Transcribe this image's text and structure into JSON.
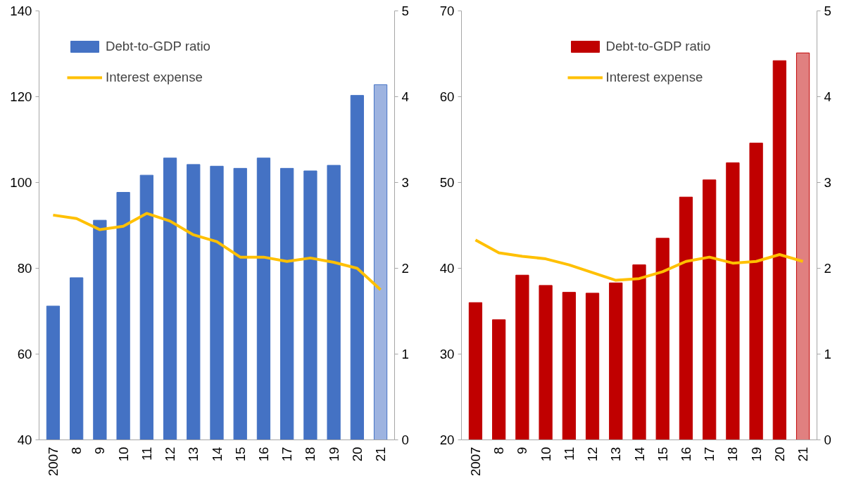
{
  "chart_data": [
    {
      "type": "bar",
      "categories": [
        "2007",
        "8",
        "9",
        "10",
        "11",
        "12",
        "13",
        "14",
        "15",
        "16",
        "17",
        "18",
        "19",
        "20",
        "21"
      ],
      "ylim": [
        40,
        140
      ],
      "yticks": [
        40,
        60,
        80,
        100,
        120,
        140
      ],
      "y2lim": [
        0,
        5
      ],
      "y2ticks": [
        0,
        1,
        2,
        3,
        4,
        5
      ],
      "grid": false,
      "legend": "top left",
      "series": [
        {
          "name": "Debt-to-GDP ratio",
          "color": "#4472c4",
          "colors": [
            "#4472c4",
            "#4472c4",
            "#4472c4",
            "#4472c4",
            "#4472c4",
            "#4472c4",
            "#4472c4",
            "#4472c4",
            "#4472c4",
            "#4472c4",
            "#4472c4",
            "#4472c4",
            "#4472c4",
            "#4472c4",
            "#9db3e0"
          ],
          "values": [
            71.2,
            77.8,
            91.2,
            97.7,
            101.7,
            105.7,
            104.2,
            103.8,
            103.3,
            105.7,
            103.3,
            102.7,
            104,
            120.3,
            122.8
          ]
        },
        {
          "name": "Interest expense",
          "type": "line",
          "axis": "y2",
          "color": "#ffc000",
          "values": [
            2.62,
            2.58,
            2.45,
            2.49,
            2.64,
            2.55,
            2.39,
            2.31,
            2.13,
            2.13,
            2.08,
            2.12,
            2.07,
            2.0,
            1.75
          ]
        }
      ]
    },
    {
      "type": "bar",
      "categories": [
        "2007",
        "8",
        "9",
        "10",
        "11",
        "12",
        "13",
        "14",
        "15",
        "16",
        "17",
        "18",
        "19",
        "20",
        "21"
      ],
      "ylim": [
        20,
        70
      ],
      "yticks": [
        20,
        30,
        40,
        50,
        60,
        70
      ],
      "y2lim": [
        0,
        5
      ],
      "y2ticks": [
        0,
        1,
        2,
        3,
        4,
        5
      ],
      "grid": false,
      "legend": "top",
      "series": [
        {
          "name": "Debt-to-GDP ratio",
          "color": "#c00000",
          "colors": [
            "#c00000",
            "#c00000",
            "#c00000",
            "#c00000",
            "#c00000",
            "#c00000",
            "#c00000",
            "#c00000",
            "#c00000",
            "#c00000",
            "#c00000",
            "#c00000",
            "#c00000",
            "#c00000",
            "#e08080"
          ],
          "values": [
            36,
            34,
            39.2,
            38,
            37.2,
            37.1,
            38.3,
            40.4,
            43.5,
            48.3,
            50.3,
            52.3,
            54.6,
            64.2,
            65.1
          ]
        },
        {
          "name": "Interest expense",
          "type": "line",
          "axis": "y2",
          "color": "#ffc000",
          "values": [
            2.33,
            2.18,
            2.14,
            2.11,
            2.04,
            1.95,
            1.86,
            1.88,
            1.96,
            2.08,
            2.13,
            2.06,
            2.08,
            2.16,
            2.08
          ]
        }
      ]
    }
  ]
}
